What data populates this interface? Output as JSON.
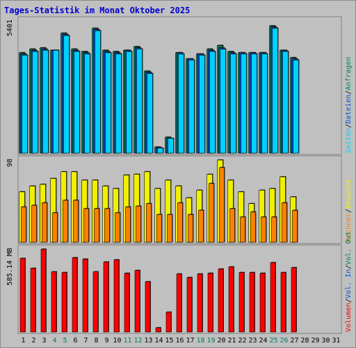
{
  "chart_data": {
    "type": "bar",
    "title": "Tages-Statistik im Monat Oktober 2025",
    "colors": {
      "title": "#0000d0",
      "anfragen": "#008060",
      "dateien": "#0050d0",
      "seiten": "#00d0ff",
      "besuche": "#f0f000",
      "rechner": "#ff8000",
      "volumen": "#ff0000",
      "in_out": "#008060",
      "weekend": "#008060",
      "weekday": "#000000",
      "background": "#c0c0c0",
      "panel_bg": "#c0c0c0",
      "border": "#808080"
    },
    "categories": [
      "1",
      "2",
      "3",
      "4",
      "5",
      "6",
      "7",
      "8",
      "9",
      "10",
      "11",
      "12",
      "13",
      "14",
      "15",
      "16",
      "17",
      "18",
      "19",
      "20",
      "21",
      "22",
      "23",
      "24",
      "25",
      "26",
      "27",
      "28",
      "29",
      "30",
      "31"
    ],
    "weekend_days": [
      "4",
      "5",
      "11",
      "12",
      "18",
      "19",
      "25",
      "26"
    ],
    "panels": [
      {
        "id": "requests",
        "ymax_label": "5401",
        "ymax": 5401,
        "series": [
          {
            "name": "Anfragen",
            "values": [
              4100,
              4250,
              4300,
              4200,
              4900,
              4250,
              4150,
              5100,
              4200,
              4150,
              4200,
              4350,
              3350,
              250,
              650,
              4100,
              3850,
              4050,
              4250,
              4400,
              4150,
              4100,
              4100,
              4100,
              5200,
              4200,
              3900,
              0,
              0,
              0,
              0
            ]
          },
          {
            "name": "Dateien",
            "values": [
              4050,
              4200,
              4250,
              4200,
              4850,
              4200,
              4100,
              5050,
              4150,
              4100,
              4200,
              4300,
              3300,
              220,
              600,
              4100,
              3850,
              4050,
              4200,
              4300,
              4100,
              4100,
              4100,
              4100,
              5150,
              4200,
              3850,
              0,
              0,
              0,
              0
            ]
          },
          {
            "name": "Seiten",
            "values": [
              4000,
              4150,
              4200,
              4200,
              4800,
              4150,
              4050,
              5000,
              4100,
              4050,
              4150,
              4250,
              3250,
              200,
              600,
              4050,
              3800,
              4000,
              4150,
              4250,
              4050,
              4050,
              4050,
              4050,
              5100,
              4150,
              3800,
              0,
              0,
              0,
              0
            ]
          }
        ],
        "legend": [
          "Anfragen",
          "Dateien",
          "Seiten"
        ]
      },
      {
        "id": "visits",
        "ymax_label": "98",
        "ymax": 98,
        "series": [
          {
            "name": "Besuche",
            "values": [
              60,
              67,
              69,
              76,
              84,
              84,
              74,
              74,
              67,
              64,
              80,
              81,
              84,
              64,
              74,
              67,
              53,
              62,
              81,
              98,
              74,
              60,
              46,
              62,
              64,
              78,
              54,
              0,
              0,
              0,
              0
            ]
          },
          {
            "name": "Rechner",
            "values": [
              42,
              44,
              47,
              35,
              50,
              50,
              40,
              40,
              40,
              35,
              42,
              43,
              46,
              33,
              33,
              47,
              33,
              38,
              70,
              89,
              40,
              30,
              36,
              30,
              30,
              47,
              38,
              0,
              0,
              0,
              0
            ]
          }
        ],
        "legend": [
          "Besuche",
          "Rechner"
        ]
      },
      {
        "id": "volume",
        "ymax_label": "585.14 MB",
        "ymax": 585.14,
        "series": [
          {
            "name": "Volumen",
            "values": [
              520,
              450,
              585,
              425,
              420,
              525,
              515,
              425,
              495,
              510,
              415,
              435,
              355,
              30,
              140,
              410,
              385,
              410,
              415,
              445,
              460,
              420,
              420,
              415,
              490,
              420,
              455,
              0,
              0,
              0,
              0
            ]
          }
        ],
        "legend": [
          "Volumen",
          "Vol. In",
          "Vol. Out"
        ]
      }
    ],
    "legend_separator": "/"
  }
}
